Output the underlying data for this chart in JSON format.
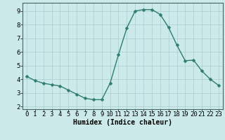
{
  "x": [
    0,
    1,
    2,
    3,
    4,
    5,
    6,
    7,
    8,
    9,
    10,
    11,
    12,
    13,
    14,
    15,
    16,
    17,
    18,
    19,
    20,
    21,
    22,
    23
  ],
  "y": [
    4.2,
    3.9,
    3.7,
    3.6,
    3.5,
    3.2,
    2.9,
    2.6,
    2.5,
    2.5,
    3.7,
    5.8,
    7.75,
    9.0,
    9.1,
    9.1,
    8.75,
    7.8,
    6.5,
    5.35,
    5.4,
    4.6,
    4.0,
    3.55
  ],
  "line_color": "#2e7d6e",
  "marker": "D",
  "marker_size": 2.5,
  "linewidth": 1.0,
  "bg_color": "#cceaea",
  "grid_color": "#aacccc",
  "xlabel": "Humidex (Indice chaleur)",
  "xlabel_fontsize": 7,
  "tick_fontsize": 6.5,
  "xlim": [
    -0.5,
    23.5
  ],
  "ylim": [
    1.8,
    9.6
  ],
  "yticks": [
    2,
    3,
    4,
    5,
    6,
    7,
    8,
    9
  ],
  "xticks": [
    0,
    1,
    2,
    3,
    4,
    5,
    6,
    7,
    8,
    9,
    10,
    11,
    12,
    13,
    14,
    15,
    16,
    17,
    18,
    19,
    20,
    21,
    22,
    23
  ]
}
